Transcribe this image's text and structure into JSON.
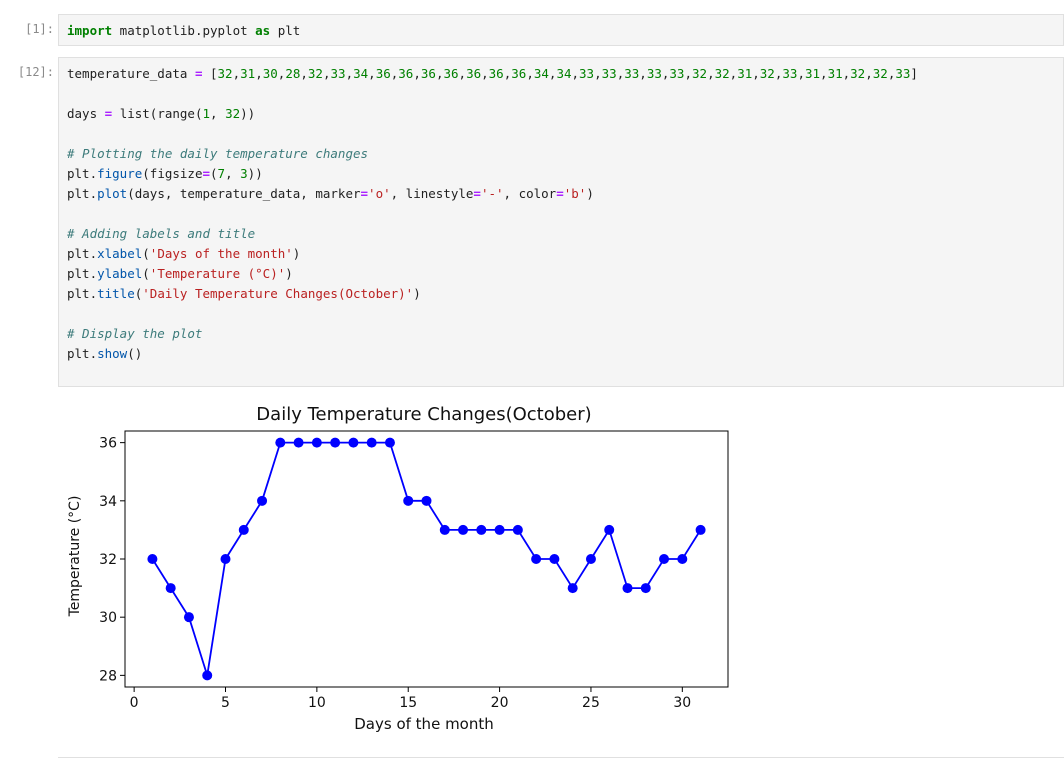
{
  "cells": [
    {
      "prompt": "[1]:",
      "lines": [
        [
          [
            "kw",
            "import"
          ],
          [
            "plain",
            " matplotlib.pyplot "
          ],
          [
            "kw",
            "as"
          ],
          [
            "plain",
            " plt"
          ]
        ]
      ]
    },
    {
      "prompt": "[12]:",
      "lines": [
        [
          [
            "plain",
            "temperature_data "
          ],
          [
            "op",
            "="
          ],
          [
            "plain",
            " ["
          ],
          [
            "num",
            "32"
          ],
          [
            "plain",
            ","
          ],
          [
            "num",
            "31"
          ],
          [
            "plain",
            ","
          ],
          [
            "num",
            "30"
          ],
          [
            "plain",
            ","
          ],
          [
            "num",
            "28"
          ],
          [
            "plain",
            ","
          ],
          [
            "num",
            "32"
          ],
          [
            "plain",
            ","
          ],
          [
            "num",
            "33"
          ],
          [
            "plain",
            ","
          ],
          [
            "num",
            "34"
          ],
          [
            "plain",
            ","
          ],
          [
            "num",
            "36"
          ],
          [
            "plain",
            ","
          ],
          [
            "num",
            "36"
          ],
          [
            "plain",
            ","
          ],
          [
            "num",
            "36"
          ],
          [
            "plain",
            ","
          ],
          [
            "num",
            "36"
          ],
          [
            "plain",
            ","
          ],
          [
            "num",
            "36"
          ],
          [
            "plain",
            ","
          ],
          [
            "num",
            "36"
          ],
          [
            "plain",
            ","
          ],
          [
            "num",
            "36"
          ],
          [
            "plain",
            ","
          ],
          [
            "num",
            "34"
          ],
          [
            "plain",
            ","
          ],
          [
            "num",
            "34"
          ],
          [
            "plain",
            ","
          ],
          [
            "num",
            "33"
          ],
          [
            "plain",
            ","
          ],
          [
            "num",
            "33"
          ],
          [
            "plain",
            ","
          ],
          [
            "num",
            "33"
          ],
          [
            "plain",
            ","
          ],
          [
            "num",
            "33"
          ],
          [
            "plain",
            ","
          ],
          [
            "num",
            "33"
          ],
          [
            "plain",
            ","
          ],
          [
            "num",
            "32"
          ],
          [
            "plain",
            ","
          ],
          [
            "num",
            "32"
          ],
          [
            "plain",
            ","
          ],
          [
            "num",
            "31"
          ],
          [
            "plain",
            ","
          ],
          [
            "num",
            "32"
          ],
          [
            "plain",
            ","
          ],
          [
            "num",
            "33"
          ],
          [
            "plain",
            ","
          ],
          [
            "num",
            "31"
          ],
          [
            "plain",
            ","
          ],
          [
            "num",
            "31"
          ],
          [
            "plain",
            ","
          ],
          [
            "num",
            "32"
          ],
          [
            "plain",
            ","
          ],
          [
            "num",
            "32"
          ],
          [
            "plain",
            ","
          ],
          [
            "num",
            "33"
          ],
          [
            "plain",
            "]"
          ]
        ],
        [],
        [
          [
            "plain",
            "days "
          ],
          [
            "op",
            "="
          ],
          [
            "plain",
            " list(range("
          ],
          [
            "num",
            "1"
          ],
          [
            "plain",
            ", "
          ],
          [
            "num",
            "32"
          ],
          [
            "plain",
            "))"
          ]
        ],
        [],
        [
          [
            "cm",
            "# Plotting the daily temperature changes"
          ]
        ],
        [
          [
            "plain",
            "plt."
          ],
          [
            "fn",
            "figure"
          ],
          [
            "plain",
            "(figsize"
          ],
          [
            "op",
            "="
          ],
          [
            "plain",
            "("
          ],
          [
            "num",
            "7"
          ],
          [
            "plain",
            ", "
          ],
          [
            "num",
            "3"
          ],
          [
            "plain",
            "))"
          ]
        ],
        [
          [
            "plain",
            "plt."
          ],
          [
            "fn",
            "plot"
          ],
          [
            "plain",
            "(days, temperature_data, marker"
          ],
          [
            "op",
            "="
          ],
          [
            "str",
            "'o'"
          ],
          [
            "plain",
            ", linestyle"
          ],
          [
            "op",
            "="
          ],
          [
            "str",
            "'-'"
          ],
          [
            "plain",
            ", color"
          ],
          [
            "op",
            "="
          ],
          [
            "str",
            "'b'"
          ],
          [
            "plain",
            ")"
          ]
        ],
        [],
        [
          [
            "cm",
            "# Adding labels and title"
          ]
        ],
        [
          [
            "plain",
            "plt."
          ],
          [
            "fn",
            "xlabel"
          ],
          [
            "plain",
            "("
          ],
          [
            "str",
            "'Days of the month'"
          ],
          [
            "plain",
            ")"
          ]
        ],
        [
          [
            "plain",
            "plt."
          ],
          [
            "fn",
            "ylabel"
          ],
          [
            "plain",
            "("
          ],
          [
            "str",
            "'Temperature (°C)'"
          ],
          [
            "plain",
            ")"
          ]
        ],
        [
          [
            "plain",
            "plt."
          ],
          [
            "fn",
            "title"
          ],
          [
            "plain",
            "("
          ],
          [
            "str",
            "'Daily Temperature Changes(October)'"
          ],
          [
            "plain",
            ")"
          ]
        ],
        [],
        [
          [
            "cm",
            "# Display the plot"
          ]
        ],
        [
          [
            "plain",
            "plt."
          ],
          [
            "fn",
            "show"
          ],
          [
            "plain",
            "()"
          ]
        ]
      ]
    }
  ],
  "chart_data": {
    "type": "line",
    "title": "Daily Temperature Changes(October)",
    "xlabel": "Days of the month",
    "ylabel": "Temperature (°C)",
    "x": [
      1,
      2,
      3,
      4,
      5,
      6,
      7,
      8,
      9,
      10,
      11,
      12,
      13,
      14,
      15,
      16,
      17,
      18,
      19,
      20,
      21,
      22,
      23,
      24,
      25,
      26,
      27,
      28,
      29,
      30,
      31
    ],
    "y": [
      32,
      31,
      30,
      28,
      32,
      33,
      34,
      36,
      36,
      36,
      36,
      36,
      36,
      36,
      34,
      34,
      33,
      33,
      33,
      33,
      33,
      32,
      32,
      31,
      32,
      33,
      31,
      31,
      32,
      32,
      33
    ],
    "xlim": [
      -0.5,
      32.5
    ],
    "ylim": [
      27.6,
      36.4
    ],
    "xticks": [
      0,
      5,
      10,
      15,
      20,
      25,
      30
    ],
    "yticks": [
      28,
      30,
      32,
      34,
      36
    ],
    "color": "#0000ff",
    "marker": "o",
    "grid": false
  }
}
